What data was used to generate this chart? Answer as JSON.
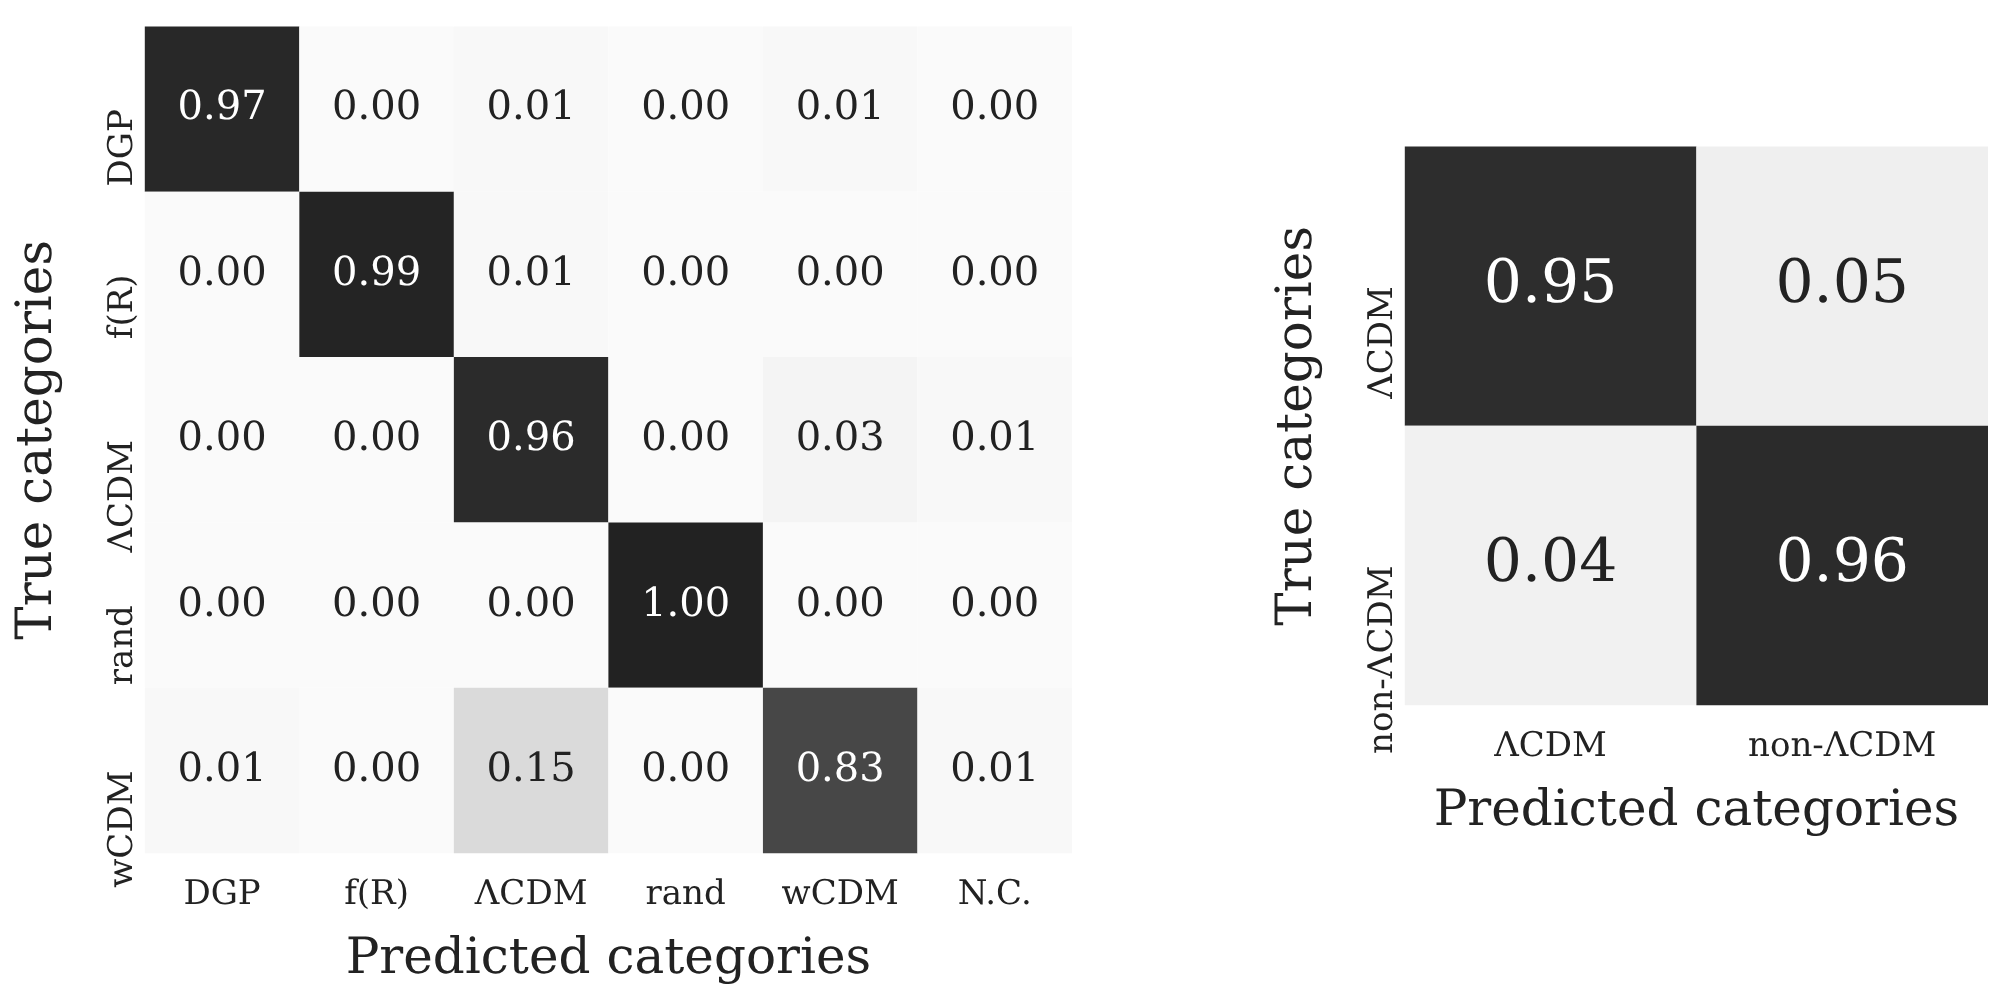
{
  "chart_data": [
    {
      "type": "heatmap",
      "xlabel": "Predicted categories",
      "ylabel": "True categories",
      "categories": [
        "DGP",
        "f(R)",
        "ΛCDM",
        "rand",
        "wCDM",
        "N.C."
      ],
      "y_categories": [
        "DGP",
        "f(R)",
        "ΛCDM",
        "rand",
        "wCDM"
      ],
      "cells": [
        [
          0.97,
          0.0,
          0.01,
          0.0,
          0.01,
          0.0
        ],
        [
          0.0,
          0.99,
          0.01,
          0.0,
          0.0,
          0.0
        ],
        [
          0.0,
          0.0,
          0.96,
          0.0,
          0.03,
          0.01
        ],
        [
          0.0,
          0.0,
          0.0,
          1.0,
          0.0,
          0.0
        ],
        [
          0.01,
          0.0,
          0.15,
          0.0,
          0.83,
          0.01
        ]
      ],
      "cell_labels": [
        [
          "0.97",
          "0.00",
          "0.01",
          "0.00",
          "0.01",
          "0.00"
        ],
        [
          "0.00",
          "0.99",
          "0.01",
          "0.00",
          "0.00",
          "0.00"
        ],
        [
          "0.00",
          "0.00",
          "0.96",
          "0.00",
          "0.03",
          "0.01"
        ],
        [
          "0.00",
          "0.00",
          "0.00",
          "1.00",
          "0.00",
          "0.00"
        ],
        [
          "0.01",
          "0.00",
          "0.15",
          "0.00",
          "0.83",
          "0.01"
        ]
      ]
    },
    {
      "type": "heatmap",
      "xlabel": "Predicted categories",
      "ylabel": "True categories",
      "categories": [
        "ΛCDM",
        "non-ΛCDM"
      ],
      "y_categories": [
        "ΛCDM",
        "non-ΛCDM"
      ],
      "cells": [
        [
          0.95,
          0.05
        ],
        [
          0.04,
          0.96
        ]
      ],
      "cell_labels": [
        [
          "0.95",
          "0.05"
        ],
        [
          "0.04",
          "0.96"
        ]
      ]
    }
  ]
}
